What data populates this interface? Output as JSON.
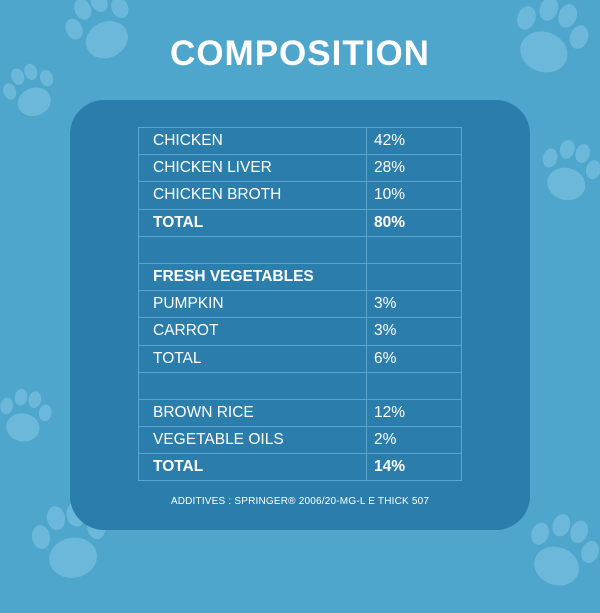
{
  "title": "COMPOSITION",
  "rows": [
    {
      "name": "CHICKEN",
      "value": "42%",
      "bold": false
    },
    {
      "name": "CHICKEN LIVER",
      "value": "28%",
      "bold": false
    },
    {
      "name": "CHICKEN BROTH",
      "value": "10%",
      "bold": false
    },
    {
      "name": "TOTAL",
      "value": "80%",
      "bold": true
    },
    {
      "name": "",
      "value": "",
      "bold": false
    },
    {
      "name": "FRESH VEGETABLES",
      "value": "",
      "bold": true
    },
    {
      "name": "PUMPKIN",
      "value": "3%",
      "bold": false
    },
    {
      "name": "CARROT",
      "value": "3%",
      "bold": false
    },
    {
      "name": "TOTAL",
      "value": "6%",
      "bold": false
    },
    {
      "name": "",
      "value": "",
      "bold": false
    },
    {
      "name": "BROWN RICE",
      "value": "12%",
      "bold": false
    },
    {
      "name": "VEGETABLE OILS",
      "value": "2%",
      "bold": false
    },
    {
      "name": "TOTAL",
      "value": "14%",
      "bold": true
    }
  ],
  "additives": "ADDITIVES : SPRINGER® 2006/20-MG-L E THICK 507",
  "colors": {
    "background": "#4ea6cc",
    "panel": "#2b7eab",
    "grid": "#5aa6cf",
    "paw": "#6cb8da",
    "text": "#ffffff"
  },
  "decorations": [
    "paw-print-icon"
  ]
}
